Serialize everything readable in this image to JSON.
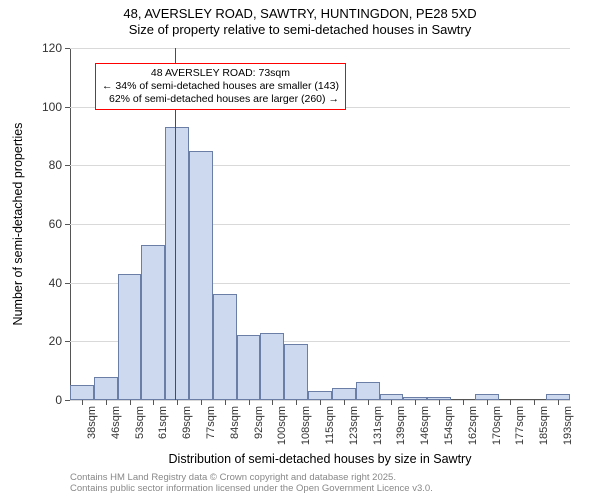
{
  "title": {
    "line1": "48, AVERSLEY ROAD, SAWTRY, HUNTINGDON, PE28 5XD",
    "line2": "Size of property relative to semi-detached houses in Sawtry",
    "fontsize": 13,
    "color": "#000000"
  },
  "chart": {
    "type": "histogram",
    "background_color": "#ffffff",
    "grid_color": "#d9d9d9",
    "axis_color": "#555555",
    "ylim": [
      0,
      120
    ],
    "ytick_step": 20,
    "yticks": [
      0,
      20,
      40,
      60,
      80,
      100,
      120
    ],
    "y_label": "Number of semi-detached properties",
    "x_label": "Distribution of semi-detached houses by size in Sawtry",
    "label_fontsize": 12.5,
    "tick_fontsize": 12,
    "categories": [
      "38sqm",
      "46sqm",
      "53sqm",
      "61sqm",
      "69sqm",
      "77sqm",
      "84sqm",
      "92sqm",
      "100sqm",
      "108sqm",
      "115sqm",
      "123sqm",
      "131sqm",
      "139sqm",
      "146sqm",
      "154sqm",
      "162sqm",
      "170sqm",
      "177sqm",
      "185sqm",
      "193sqm"
    ],
    "values": [
      5,
      8,
      43,
      53,
      93,
      85,
      36,
      22,
      23,
      19,
      3,
      4,
      6,
      2,
      1,
      1,
      0,
      2,
      0,
      0,
      2
    ],
    "bar_fill": "#cdd9ee",
    "bar_border": "#6b7fa6",
    "bar_width": 1.0,
    "marker": {
      "position_index": 4.42,
      "color": "#ff0000",
      "width": 1.5
    },
    "annot": {
      "lines": [
        "48 AVERSLEY ROAD: 73sqm",
        "← 34% of semi-detached houses are smaller (143)",
        "62% of semi-detached houses are larger (260) →"
      ],
      "border_color": "#ff0000",
      "fontsize": 10.5,
      "top_value": 115,
      "left_index": 1.05
    }
  },
  "footer": {
    "line1": "Contains HM Land Registry data © Crown copyright and database right 2025.",
    "line2": "Contains public sector information licensed under the Open Government Licence v3.0.",
    "color": "#888888",
    "fontsize": 9.5
  }
}
